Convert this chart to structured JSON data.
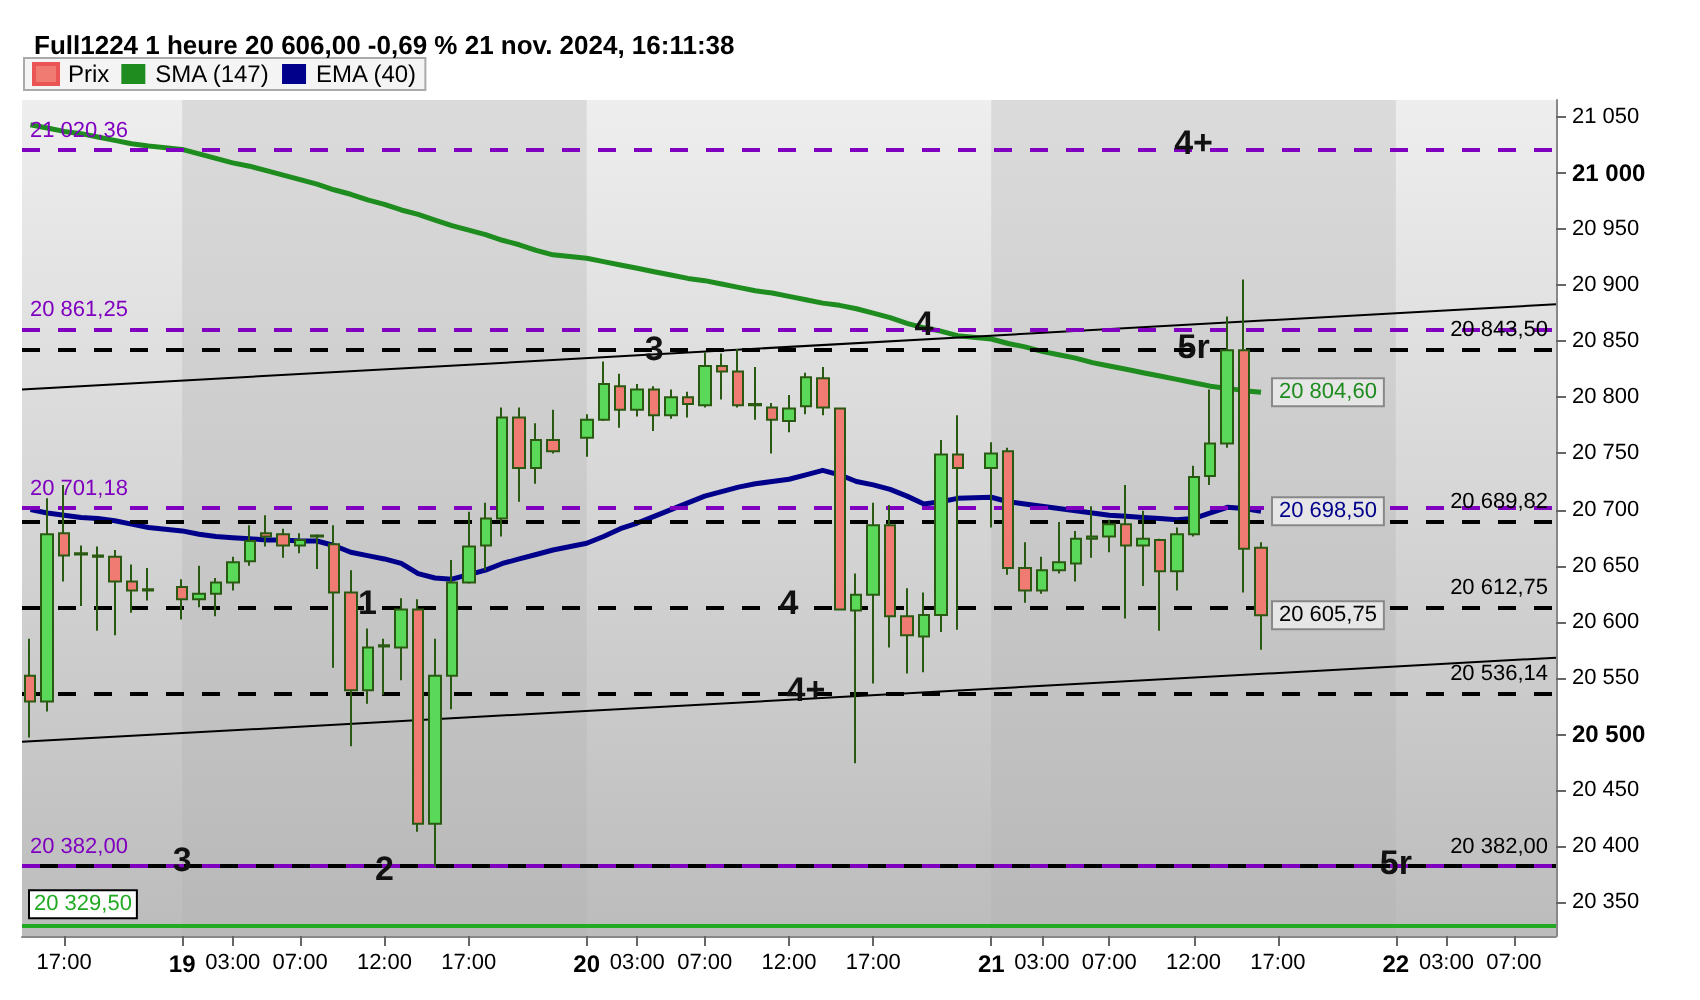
{
  "chart_data": {
    "type": "candlestick",
    "title": "Full1224 1 heure 20 606,00 -0,69 % 21 nov. 2024, 16:11:38",
    "legend": "top left",
    "grid": false,
    "x": [
      "2024-11-18T15:00",
      "2024-11-18T16:00",
      "2024-11-18T17:00",
      "2024-11-18T18:00",
      "2024-11-18T19:00",
      "2024-11-18T20:00",
      "2024-11-18T21:00",
      "2024-11-18T22:00",
      "2024-11-19T00:00",
      "2024-11-19T01:00",
      "2024-11-19T02:00",
      "2024-11-19T03:00",
      "2024-11-19T04:00",
      "2024-11-19T05:00",
      "2024-11-19T06:00",
      "2024-11-19T07:00",
      "2024-11-19T08:00",
      "2024-11-19T09:00",
      "2024-11-19T10:00",
      "2024-11-19T11:00",
      "2024-11-19T12:00",
      "2024-11-19T13:00",
      "2024-11-19T14:00",
      "2024-11-19T15:00",
      "2024-11-19T16:00",
      "2024-11-19T17:00",
      "2024-11-19T18:00",
      "2024-11-19T19:00",
      "2024-11-19T20:00",
      "2024-11-19T21:00",
      "2024-11-19T22:00",
      "2024-11-20T00:00",
      "2024-11-20T01:00",
      "2024-11-20T02:00",
      "2024-11-20T03:00",
      "2024-11-20T04:00",
      "2024-11-20T05:00",
      "2024-11-20T06:00",
      "2024-11-20T07:00",
      "2024-11-20T08:00",
      "2024-11-20T09:00",
      "2024-11-20T10:00",
      "2024-11-20T11:00",
      "2024-11-20T12:00",
      "2024-11-20T13:00",
      "2024-11-20T14:00",
      "2024-11-20T15:00",
      "2024-11-20T16:00",
      "2024-11-20T17:00",
      "2024-11-20T18:00",
      "2024-11-20T19:00",
      "2024-11-20T20:00",
      "2024-11-20T21:00",
      "2024-11-20T22:00",
      "2024-11-21T00:00",
      "2024-11-21T01:00",
      "2024-11-21T02:00",
      "2024-11-21T03:00",
      "2024-11-21T04:00",
      "2024-11-21T05:00",
      "2024-11-21T06:00",
      "2024-11-21T07:00",
      "2024-11-21T08:00",
      "2024-11-21T09:00",
      "2024-11-21T10:00",
      "2024-11-21T11:00",
      "2024-11-21T12:00",
      "2024-11-21T13:00",
      "2024-11-21T14:00",
      "2024-11-21T15:00",
      "2024-11-21T16:00"
    ],
    "xlim": [
      "2024-11-18T14:30",
      "2024-11-22T09:30"
    ],
    "xticks": [
      {
        "value": "2024-11-18T17:00",
        "label": "17:00"
      },
      {
        "value": "2024-11-19T00:00",
        "label": "19"
      },
      {
        "value": "2024-11-19T03:00",
        "label": "03:00"
      },
      {
        "value": "2024-11-19T07:00",
        "label": "07:00"
      },
      {
        "value": "2024-11-19T12:00",
        "label": "12:00"
      },
      {
        "value": "2024-11-19T17:00",
        "label": "17:00"
      },
      {
        "value": "2024-11-20T00:00",
        "label": "20"
      },
      {
        "value": "2024-11-20T03:00",
        "label": "03:00"
      },
      {
        "value": "2024-11-20T07:00",
        "label": "07:00"
      },
      {
        "value": "2024-11-20T12:00",
        "label": "12:00"
      },
      {
        "value": "2024-11-20T17:00",
        "label": "17:00"
      },
      {
        "value": "2024-11-21T00:00",
        "label": "21"
      },
      {
        "value": "2024-11-21T03:00",
        "label": "03:00"
      },
      {
        "value": "2024-11-21T07:00",
        "label": "07:00"
      },
      {
        "value": "2024-11-21T12:00",
        "label": "12:00"
      },
      {
        "value": "2024-11-21T17:00",
        "label": "17:00"
      },
      {
        "value": "2024-11-22T00:00",
        "label": "22"
      },
      {
        "value": "2024-11-22T03:00",
        "label": "03:00"
      },
      {
        "value": "2024-11-22T07:00",
        "label": "07:00"
      }
    ],
    "ylim": [
      20320,
      21065
    ],
    "yticks": [
      {
        "value": 20350,
        "label": "20 350"
      },
      {
        "value": 20400,
        "label": "20 400"
      },
      {
        "value": 20450,
        "label": "20 450"
      },
      {
        "value": 20500,
        "label": "20 500"
      },
      {
        "value": 20550,
        "label": "20 550"
      },
      {
        "value": 20600,
        "label": "20 600"
      },
      {
        "value": 20650,
        "label": "20 650"
      },
      {
        "value": 20700,
        "label": "20 700"
      },
      {
        "value": 20750,
        "label": "20 750"
      },
      {
        "value": 20800,
        "label": "20 800"
      },
      {
        "value": 20850,
        "label": "20 850"
      },
      {
        "value": 20900,
        "label": "20 900"
      },
      {
        "value": 20950,
        "label": "20 950"
      },
      {
        "value": 21000,
        "label": "21 000"
      },
      {
        "value": 21050,
        "label": "21 050"
      }
    ],
    "series": [
      {
        "type": "candlestick",
        "name": "Prix",
        "ohlc": [
          [
            20552,
            20585,
            20497,
            20529
          ],
          [
            20529,
            20710,
            20520,
            20678
          ],
          [
            20679,
            20722,
            20636,
            20659
          ],
          [
            20660,
            20668,
            20614,
            20661
          ],
          [
            20658,
            20667,
            20592,
            20659
          ],
          [
            20658,
            20664,
            20588,
            20636
          ],
          [
            20636,
            20651,
            20608,
            20628
          ],
          [
            20628,
            20648,
            20619,
            20629
          ],
          [
            20631,
            20638,
            20602,
            20620
          ],
          [
            20620,
            20650,
            20613,
            20625
          ],
          [
            20625,
            20639,
            20605,
            20635
          ],
          [
            20635,
            20658,
            20628,
            20653
          ],
          [
            20654,
            20686,
            20650,
            20672
          ],
          [
            20679,
            20695,
            20667,
            20676
          ],
          [
            20678,
            20683,
            20657,
            20668
          ],
          [
            20668,
            20679,
            20661,
            20673
          ],
          [
            20676,
            20678,
            20647,
            20677
          ],
          [
            20669,
            20686,
            20559,
            20626
          ],
          [
            20626,
            20646,
            20489,
            20539
          ],
          [
            20539,
            20594,
            20527,
            20577
          ],
          [
            20578,
            20585,
            20535,
            20579
          ],
          [
            20577,
            20621,
            20548,
            20611
          ],
          [
            20611,
            20620,
            20413,
            20420
          ],
          [
            20420,
            20585,
            20382,
            20552
          ],
          [
            20552,
            20655,
            20522,
            20635
          ],
          [
            20635,
            20698,
            20634,
            20667
          ],
          [
            20668,
            20706,
            20646,
            20692
          ],
          [
            20692,
            20791,
            20676,
            20782
          ],
          [
            20782,
            20791,
            20707,
            20737
          ],
          [
            20737,
            20777,
            20723,
            20762
          ],
          [
            20762,
            20789,
            20750,
            20752
          ],
          [
            20764,
            20785,
            20747,
            20780
          ],
          [
            20780,
            20832,
            20779,
            20812
          ],
          [
            20810,
            20821,
            20773,
            20789
          ],
          [
            20789,
            20812,
            20783,
            20807
          ],
          [
            20807,
            20810,
            20770,
            20784
          ],
          [
            20784,
            20807,
            20781,
            20800
          ],
          [
            20800,
            20805,
            20782,
            20794
          ],
          [
            20793,
            20840,
            20791,
            20828
          ],
          [
            20828,
            20839,
            20798,
            20823
          ],
          [
            20823,
            20843,
            20791,
            20793
          ],
          [
            20793,
            20827,
            20780,
            20794
          ],
          [
            20791,
            20795,
            20750,
            20780
          ],
          [
            20779,
            20802,
            20769,
            20790
          ],
          [
            20792,
            20822,
            20785,
            20818
          ],
          [
            20817,
            20827,
            20784,
            20791
          ],
          [
            20790,
            20790,
            20611,
            20611
          ],
          [
            20610,
            20643,
            20474,
            20624
          ],
          [
            20624,
            20706,
            20545,
            20686
          ],
          [
            20686,
            20704,
            20577,
            20605
          ],
          [
            20605,
            20630,
            20554,
            20588
          ],
          [
            20587,
            20626,
            20555,
            20606
          ],
          [
            20606,
            20762,
            20591,
            20749
          ],
          [
            20749,
            20784,
            20593,
            20737
          ],
          [
            20737,
            20760,
            20684,
            20750
          ],
          [
            20752,
            20755,
            20642,
            20648
          ],
          [
            20648,
            20671,
            20617,
            20628
          ],
          [
            20628,
            20658,
            20625,
            20646
          ],
          [
            20646,
            20689,
            20643,
            20653
          ],
          [
            20652,
            20681,
            20636,
            20674
          ],
          [
            20674,
            20703,
            20657,
            20676
          ],
          [
            20676,
            20691,
            20662,
            20687
          ],
          [
            20687,
            20722,
            20603,
            20668
          ],
          [
            20668,
            20699,
            20632,
            20674
          ],
          [
            20673,
            20674,
            20592,
            20645
          ],
          [
            20645,
            20684,
            20628,
            20678
          ],
          [
            20678,
            20739,
            20676,
            20729
          ],
          [
            20730,
            20807,
            20722,
            20759
          ],
          [
            20759,
            20872,
            20755,
            20842
          ],
          [
            20842,
            20905,
            20626,
            20665
          ],
          [
            20666,
            20671,
            20575,
            20605.75
          ]
        ],
        "colors": [
          "#ef7b73",
          "#5ad85a",
          "#ef7b73",
          "#5ad85a",
          "#5ad85a",
          "#ef7b73",
          "#ef7b73",
          "#5ad85a",
          "#ef7b73",
          "#5ad85a",
          "#5ad85a",
          "#5ad85a",
          "#5ad85a",
          "#ef7b73",
          "#ef7b73",
          "#5ad85a",
          "#5ad85a",
          "#ef7b73",
          "#ef7b73",
          "#5ad85a",
          "#5ad85a",
          "#5ad85a",
          "#ef7b73",
          "#5ad85a",
          "#5ad85a",
          "#5ad85a",
          "#5ad85a",
          "#5ad85a",
          "#ef7b73",
          "#5ad85a",
          "#ef7b73",
          "#5ad85a",
          "#5ad85a",
          "#ef7b73",
          "#5ad85a",
          "#ef7b73",
          "#5ad85a",
          "#ef7b73",
          "#5ad85a",
          "#ef7b73",
          "#ef7b73",
          "#5ad85a",
          "#ef7b73",
          "#5ad85a",
          "#5ad85a",
          "#ef7b73",
          "#ef7b73",
          "#5ad85a",
          "#5ad85a",
          "#ef7b73",
          "#ef7b73",
          "#5ad85a",
          "#5ad85a",
          "#ef7b73",
          "#5ad85a",
          "#ef7b73",
          "#ef7b73",
          "#5ad85a",
          "#5ad85a",
          "#5ad85a",
          "#5ad85a",
          "#5ad85a",
          "#ef7b73",
          "#5ad85a",
          "#ef7b73",
          "#5ad85a",
          "#5ad85a",
          "#5ad85a",
          "#5ad85a",
          "#ef7b73",
          "#ef7b73"
        ],
        "value_labels": [
          null,
          null,
          null,
          null,
          null,
          null,
          null,
          null,
          null,
          null,
          null,
          null,
          null,
          null,
          null,
          null,
          null,
          null,
          null,
          null,
          null,
          null,
          null,
          null,
          null,
          null,
          null,
          null,
          null,
          null,
          null,
          null,
          null,
          null,
          null,
          null,
          null,
          null,
          null,
          null,
          null,
          null,
          null,
          null,
          null,
          null,
          null,
          null,
          null,
          null,
          null,
          null,
          null,
          null,
          null,
          null,
          null,
          null,
          null,
          null,
          null,
          null,
          null,
          null,
          null,
          null,
          null,
          null,
          null,
          null,
          "20 605,75"
        ]
      },
      {
        "type": "line",
        "name": "SMA (147)",
        "color": "#1e8c1e",
        "values": [
          21043,
          21040,
          21037,
          21035,
          21032,
          21029,
          21026,
          21024,
          21021,
          21017,
          21013,
          21009,
          21006,
          21002,
          20998,
          20994,
          20990,
          20985,
          20981,
          20976,
          20972,
          20967,
          20963,
          20958,
          20953,
          20949,
          20945,
          20940,
          20936,
          20931,
          20927,
          20924,
          20921,
          20918,
          20915,
          20912,
          20909,
          20906,
          20904,
          20901,
          20898,
          20895,
          20893,
          20890,
          20887,
          20884,
          20882,
          20879,
          20875,
          20871,
          20866,
          20862,
          20859,
          20855,
          20852,
          20848,
          20845,
          20841,
          20838,
          20835,
          20831,
          20828,
          20825,
          20822,
          20819,
          20816,
          20813,
          20810,
          20808,
          20806,
          20804.6
        ],
        "value_labels": [
          null,
          null,
          null,
          null,
          null,
          null,
          null,
          null,
          null,
          null,
          null,
          null,
          null,
          null,
          null,
          null,
          null,
          null,
          null,
          null,
          null,
          null,
          null,
          null,
          null,
          null,
          null,
          null,
          null,
          null,
          null,
          null,
          null,
          null,
          null,
          null,
          null,
          null,
          null,
          null,
          null,
          null,
          null,
          null,
          null,
          null,
          null,
          null,
          null,
          null,
          null,
          null,
          null,
          null,
          null,
          null,
          null,
          null,
          null,
          null,
          null,
          null,
          null,
          null,
          null,
          null,
          null,
          null,
          null,
          null,
          "20 804,60"
        ]
      },
      {
        "type": "line",
        "name": "EMA (40)",
        "color": "#00008b",
        "values": [
          20700,
          20697,
          20695,
          20693,
          20692,
          20690,
          20687,
          20684,
          20681,
          20678,
          20676,
          20675,
          20674,
          20673,
          20673,
          20672,
          20672,
          20668,
          20662,
          20659,
          20656,
          20652,
          20643,
          20639,
          20638,
          20642,
          20646,
          20652,
          20656,
          20660,
          20664,
          20670,
          20676,
          20683,
          20688,
          20694,
          20700,
          20706,
          20712,
          20716,
          20720,
          20723,
          20725,
          20727,
          20731,
          20735,
          20731,
          20725,
          20722,
          20718,
          20712,
          20705,
          20707,
          20710,
          20711,
          20707,
          20705,
          20703,
          20701,
          20699,
          20697,
          20695,
          20694,
          20693,
          20692,
          20691,
          20692,
          20697,
          20702,
          20701,
          20698.5
        ],
        "colors": [
          "#00008b",
          "#00008b",
          "#00008b",
          "#00008b",
          "#00008b",
          "#00008b",
          "#00008b",
          "#00008b",
          "#00008b",
          "#00008b",
          "#00008b",
          "#40b8f0",
          "#40b8f0",
          "#40b8f0",
          "#00008b",
          "#40b8f0",
          "#00008b",
          "#00008b",
          "#00008b",
          "#00008b",
          "#00008b",
          "#00008b",
          "#00008b",
          "#00008b",
          "#40b8f0",
          "#40b8f0",
          "#40b8f0",
          "#40b8f0",
          "#40b8f0",
          "#40b8f0",
          "#40b8f0",
          "#40b8f0",
          "#40b8f0",
          "#40b8f0",
          "#40b8f0",
          "#40b8f0",
          "#40b8f0",
          "#40b8f0",
          "#40b8f0",
          "#40b8f0",
          "#40b8f0",
          "#40b8f0",
          "#40b8f0",
          "#40b8f0",
          "#40b8f0",
          "#40b8f0",
          "#00008b",
          "#00008b",
          "#00008b",
          "#00008b",
          "#00008b",
          "#40b8f0",
          "#40b8f0",
          "#40b8f0",
          "#40b8f0",
          "#00008b",
          "#00008b",
          "#00008b",
          "#00008b",
          "#00008b",
          "#00008b",
          "#00008b",
          "#00008b",
          "#00008b",
          "#00008b",
          "#40b8f0",
          "#40b8f0",
          "#40b8f0",
          "#40b8f0",
          "#00008b",
          "#00008b"
        ],
        "value_labels": [
          null,
          null,
          null,
          null,
          null,
          null,
          null,
          null,
          null,
          null,
          null,
          null,
          null,
          null,
          null,
          null,
          null,
          null,
          null,
          null,
          null,
          null,
          null,
          null,
          null,
          null,
          null,
          null,
          null,
          null,
          null,
          null,
          null,
          null,
          null,
          null,
          null,
          null,
          null,
          null,
          null,
          null,
          null,
          null,
          null,
          null,
          null,
          null,
          null,
          null,
          null,
          null,
          null,
          null,
          null,
          null,
          null,
          null,
          null,
          null,
          null,
          null,
          null,
          null,
          null,
          null,
          null,
          null,
          null,
          null,
          "20 698,50"
        ]
      },
      {
        "type": "line",
        "color": "#000000",
        "x": [
          "2024-11-18T14:30",
          "2024-11-22T09:30"
        ],
        "values": [
          20807,
          20883
        ]
      },
      {
        "type": "line",
        "color": "#000000",
        "x": [
          "2024-11-18T14:30",
          "2024-11-22T09:30"
        ],
        "values": [
          20493,
          20568
        ]
      }
    ],
    "ref_lines": [
      {
        "axis": "y",
        "value": 21020.36,
        "label": "21 020,36",
        "color": "#8000c0",
        "line_style": "dashed"
      },
      {
        "axis": "y",
        "value": 20861.25,
        "label": "20 861,25",
        "color": "#8000c0",
        "line_style": "dashed"
      },
      {
        "axis": "y",
        "value": 20701.18,
        "label": "20 701,18",
        "color": "#8000c0",
        "line_style": "dashed"
      },
      {
        "axis": "y",
        "value": 20382,
        "label": "20 382,00",
        "color": "#8000c0",
        "line_style": "dashed"
      },
      {
        "axis": "y",
        "value": 20843.5,
        "label": "20 843,50",
        "color": "#000000",
        "line_style": "dashed"
      },
      {
        "axis": "y",
        "value": 20689.82,
        "label": "20 689,82",
        "color": "#000000",
        "line_style": "dashed"
      },
      {
        "axis": "y",
        "value": 20612.75,
        "label": "20 612,75",
        "color": "#000000",
        "line_style": "dashed"
      },
      {
        "axis": "y",
        "value": 20536.14,
        "label": "20 536,14",
        "color": "#000000",
        "line_style": "dashed"
      },
      {
        "axis": "y",
        "value": 20382,
        "label": "20 382,00",
        "color": "#000000",
        "line_style": "dashed"
      },
      {
        "axis": "y",
        "value": 20329.5,
        "label": "20 329,50",
        "color": "#22aa22",
        "line_style": "solid"
      }
    ],
    "bands": [
      {
        "axis": "x",
        "from": "2024-11-19T00:00",
        "to": "2024-11-20T00:00",
        "color": "#b0b0b0"
      },
      {
        "axis": "x",
        "from": "2024-11-21T00:00",
        "to": "2024-11-22T00:00",
        "color": "#b0b0b0"
      }
    ],
    "annotations": [
      {
        "text": "1",
        "x": "2024-11-19T11:00",
        "y": 20617
      },
      {
        "text": "2",
        "x": "2024-11-19T12:00",
        "y": 20380
      },
      {
        "text": "3",
        "x": "2024-11-19T00:00",
        "y": 20388
      },
      {
        "text": "3",
        "x": "2024-11-20T04:00",
        "y": 20843
      },
      {
        "text": "4",
        "x": "2024-11-20T12:00",
        "y": 20617
      },
      {
        "text": "4+",
        "x": "2024-11-20T13:00",
        "y": 20539
      },
      {
        "text": "4",
        "x": "2024-11-20T20:00",
        "y": 20865
      },
      {
        "text": "4+",
        "x": "2024-11-21T12:00",
        "y": 21027
      },
      {
        "text": "5r",
        "x": "2024-11-21T12:00",
        "y": 20845
      },
      {
        "text": "5r",
        "x": "2024-11-22T00:00",
        "y": 20385
      }
    ]
  }
}
